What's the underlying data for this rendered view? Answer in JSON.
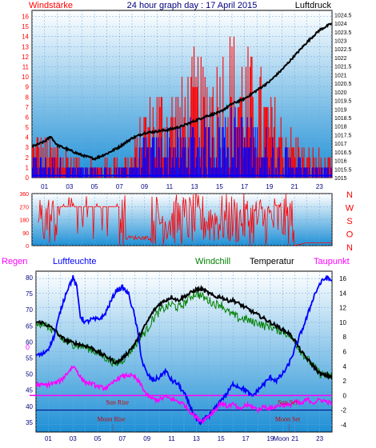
{
  "header": {
    "left_title": "Windstärke",
    "center_title": "24 hour graph day : 17 April 2015",
    "right_title": "Luftdruck"
  },
  "colors": {
    "panel_top": "#ffffff",
    "panel_bottom": "#1e90d6",
    "wind_color": "#ff0000",
    "gust_color": "#0000ff",
    "pressure_color": "#000000",
    "direction_color": "#ff0000",
    "humidity_color": "#0000ff",
    "windchill_color": "#008000",
    "temperature_color": "#000000",
    "dewpoint_color": "#ff00ff",
    "zero_line_color": "#ff00ff",
    "regen_label_color": "#ff00ff",
    "luftfeuchte_label_color": "#0000ff",
    "axis_red": "#ff0000",
    "axis_blue": "#000080",
    "event_color": "#cc0000"
  },
  "chart_data": [
    {
      "type": "line",
      "name": "wind-pressure",
      "left_axis": {
        "ticks": [
          0,
          1,
          2,
          3,
          4,
          5,
          6,
          7,
          8,
          9,
          10,
          11,
          12,
          13,
          14,
          15,
          16
        ],
        "ylim": [
          0,
          16.6
        ]
      },
      "right_axis": {
        "ticks": [
          "1015",
          "1015.5",
          "1016",
          "1016.5",
          "1017",
          "1017.5",
          "1018",
          "1018.5",
          "1019",
          "1019.5",
          "1020",
          "1020.5",
          "1021",
          "1021.5",
          "1022",
          "1022.5",
          "1023",
          "1023.5",
          "1024",
          "1024.5"
        ],
        "ylim": [
          1015,
          1024.75
        ]
      },
      "x_ticks": [
        "01",
        "03",
        "05",
        "07",
        "09",
        "11",
        "13",
        "15",
        "17",
        "19",
        "21",
        "23"
      ],
      "xlim": [
        0,
        24
      ],
      "series": [
        {
          "name": "Luftdruck",
          "axis": "right",
          "x": [
            0,
            1,
            1.5,
            2,
            3,
            4,
            5,
            6,
            7,
            8,
            9,
            10,
            11,
            12,
            13,
            14,
            15,
            16,
            17,
            18,
            19,
            20,
            21,
            22,
            23,
            24
          ],
          "y": [
            1016.8,
            1017.1,
            1017.4,
            1016.9,
            1016.6,
            1016.3,
            1016.1,
            1016.4,
            1016.8,
            1017.3,
            1017.6,
            1017.7,
            1017.8,
            1018.0,
            1018.3,
            1018.6,
            1018.8,
            1019.3,
            1019.6,
            1020.1,
            1020.6,
            1021.3,
            1022.1,
            1022.9,
            1023.6,
            1024.0
          ]
        }
      ]
    },
    {
      "type": "line",
      "name": "wind-direction",
      "left_axis": {
        "ticks": [
          "0",
          "90",
          "180",
          "270",
          "360"
        ],
        "ylim": [
          0,
          360
        ]
      },
      "right_axis": {
        "ticks": [
          "N",
          "W",
          "S",
          "O",
          "N"
        ]
      },
      "xlim": [
        0,
        24
      ]
    },
    {
      "type": "line",
      "name": "temperature-humidity",
      "legend": [
        "Regen",
        "Luftfeuchte",
        "Windchill",
        "Temperatur",
        "Taupunkt"
      ],
      "left_axis": {
        "ticks": [
          35,
          40,
          45,
          50,
          55,
          60,
          65,
          70,
          75,
          80
        ],
        "ylim": [
          32,
          82
        ]
      },
      "right_axis": {
        "ticks": [
          -4,
          -2,
          0,
          2,
          4,
          6,
          8,
          10,
          12,
          14,
          16
        ],
        "ylim": [
          -5,
          17
        ]
      },
      "x_ticks": [
        "01",
        "03",
        "05",
        "07",
        "09",
        "11",
        "13",
        "15",
        "17",
        "19",
        "21",
        "23"
      ],
      "xlim": [
        0,
        24
      ],
      "zero_label": "0",
      "events": [
        {
          "label": "Sun Rise",
          "time": 6.6
        },
        {
          "label": "Moon Rise",
          "time": 6.1
        },
        {
          "label": "Sun Set",
          "time": 20.4
        },
        {
          "label": "Moon Set",
          "time": 20.4
        },
        {
          "label": "Moon",
          "time": 20.4
        }
      ],
      "series": [
        {
          "name": "Luftfeuchte",
          "axis": "left",
          "x": [
            0,
            0.5,
            1,
            1.5,
            2,
            2.5,
            3,
            3.3,
            3.6,
            4,
            4.5,
            5,
            5.5,
            6,
            6.5,
            7,
            7.5,
            8,
            8.3,
            8.6,
            9,
            9.5,
            10,
            10.5,
            11,
            11.5,
            12,
            12.5,
            13,
            13.3,
            13.6,
            14,
            14.5,
            15,
            15.5,
            16,
            16.5,
            17,
            17.5,
            18,
            18.5,
            19,
            19.5,
            20,
            20.5,
            21,
            21.5,
            22,
            22.5,
            23,
            23.5,
            24
          ],
          "y": [
            56,
            56,
            58,
            62,
            70,
            76,
            80,
            77,
            68,
            66,
            67,
            67,
            68,
            72,
            76,
            77,
            75,
            68,
            62,
            54,
            50,
            48,
            49,
            51,
            48,
            47,
            44,
            40,
            36,
            34,
            36,
            37,
            39,
            42,
            44,
            47,
            46,
            45,
            43,
            45,
            47,
            49,
            48,
            50,
            53,
            58,
            63,
            68,
            74,
            78,
            80,
            79
          ]
        },
        {
          "name": "Temperatur",
          "axis": "right",
          "x": [
            0,
            0.5,
            1,
            1.5,
            2,
            2.5,
            3,
            3.5,
            4,
            4.5,
            5,
            5.5,
            6,
            6.5,
            7,
            7.5,
            8,
            8.5,
            9,
            9.5,
            10,
            10.5,
            11,
            11.5,
            12,
            12.5,
            13,
            13.5,
            14,
            14.5,
            15,
            15.5,
            16,
            16.5,
            17,
            17.5,
            18,
            18.5,
            19,
            19.5,
            20,
            20.5,
            21,
            21.5,
            22,
            22.5,
            23,
            23.5,
            24
          ],
          "y": [
            10,
            10,
            9.5,
            9,
            8,
            7.5,
            7.2,
            7,
            6.8,
            6.5,
            6,
            5.5,
            5,
            4.5,
            5,
            6,
            7,
            8.5,
            10,
            11.5,
            12.5,
            13,
            13.5,
            13,
            13.5,
            14,
            14.5,
            14.5,
            14,
            13.5,
            13.5,
            13,
            13,
            12.5,
            12,
            11.5,
            11,
            10.5,
            10,
            9.5,
            9,
            8.5,
            7.5,
            6,
            5,
            4,
            3,
            2.7,
            2.6
          ]
        },
        {
          "name": "Windchill",
          "axis": "right",
          "x": [
            0,
            0.5,
            1,
            1.5,
            2,
            2.5,
            3,
            3.5,
            4,
            4.5,
            5,
            5.5,
            6,
            6.5,
            7,
            7.5,
            8,
            8.5,
            9,
            9.5,
            10,
            10.5,
            11,
            11.5,
            12,
            12.5,
            13,
            13.5,
            14,
            14.5,
            15,
            15.5,
            16,
            16.5,
            17,
            17.5,
            18,
            18.5,
            19,
            19.5,
            20,
            20.5,
            21,
            21.5,
            22,
            22.5,
            23,
            23.5,
            24
          ],
          "y": [
            9.5,
            10,
            9.3,
            8.8,
            7.8,
            7.3,
            7,
            6.8,
            6.6,
            6.3,
            5.8,
            5.3,
            4.8,
            4.3,
            4.8,
            5.8,
            6.8,
            8,
            9,
            10.5,
            11.5,
            12,
            12.5,
            12,
            12.5,
            13.5,
            14,
            13.5,
            13,
            12.5,
            12.5,
            11.5,
            11,
            10.5,
            10.5,
            10,
            10,
            9.5,
            9.5,
            9,
            8.8,
            8.3,
            7.3,
            6,
            5,
            4,
            3,
            2.7,
            2.6
          ]
        },
        {
          "name": "Taupunkt",
          "axis": "right",
          "x": [
            0,
            0.5,
            1,
            1.5,
            2,
            2.5,
            3,
            3.3,
            3.6,
            4,
            4.5,
            5,
            5.5,
            6,
            6.5,
            7,
            7.5,
            8,
            8.5,
            9,
            9.5,
            10,
            10.5,
            11,
            11.5,
            12,
            12.5,
            13,
            13.5,
            14,
            14.5,
            15,
            15.5,
            16,
            16.5,
            17,
            17.5,
            18,
            18.5,
            19,
            19.5,
            20,
            20.5,
            21,
            21.5,
            22,
            22.5,
            23,
            23.5,
            24
          ],
          "y": [
            1.5,
            1.4,
            1.5,
            1.7,
            2,
            3,
            4,
            3.5,
            2.5,
            1.8,
            1.6,
            1.2,
            1,
            1.3,
            2.2,
            2.6,
            2.8,
            2.5,
            1.5,
            0,
            -0.5,
            -0.6,
            -0.2,
            -0.5,
            -0.8,
            -1.2,
            -2.2,
            -3,
            -3.5,
            -2.8,
            -2,
            -1,
            -1.5,
            -1.2,
            -2,
            -1.3,
            -1.5,
            -2,
            -1.5,
            -1.8,
            -1.5,
            -1.2,
            -1.4,
            -0.8,
            -1.2,
            -0.5,
            -1,
            -0.6,
            -0.8,
            -1.1
          ]
        }
      ]
    }
  ]
}
